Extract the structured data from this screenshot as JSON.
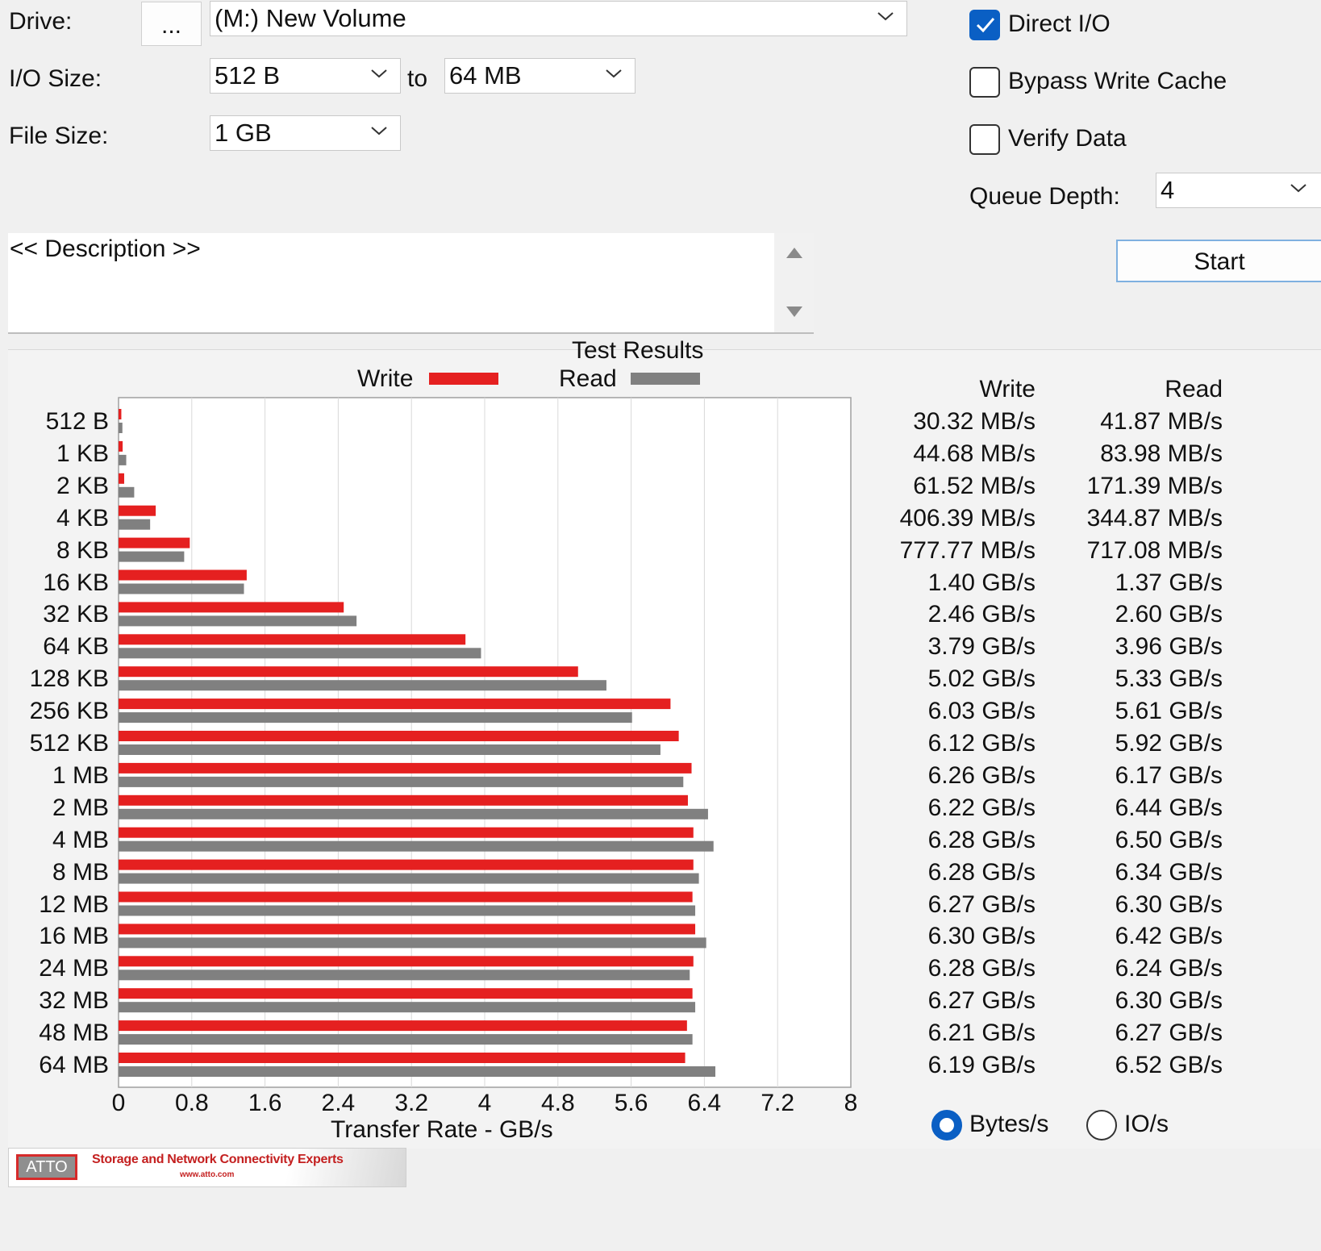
{
  "controls": {
    "drive_label": "Drive:",
    "browse_label": "...",
    "drive_value": "(M:) New Volume",
    "io_size_label": "I/O Size:",
    "io_from": "512 B",
    "io_to_word": "to",
    "io_to": "64 MB",
    "file_size_label": "File Size:",
    "file_size": "1 GB",
    "direct_io_label": "Direct I/O",
    "direct_io_checked": true,
    "bypass_label": "Bypass Write Cache",
    "bypass_checked": false,
    "verify_label": "Verify Data",
    "verify_checked": false,
    "queue_depth_label": "Queue Depth:",
    "queue_depth": "4",
    "start_label": "Start",
    "description": "<< Description >>"
  },
  "results": {
    "write_header": "Write",
    "read_header": "Read",
    "unit_bytes_label": "Bytes/s",
    "unit_io_label": "IO/s",
    "rows": [
      {
        "size": "512 B",
        "write": "30.32 MB/s",
        "read": "41.87 MB/s"
      },
      {
        "size": "1 KB",
        "write": "44.68 MB/s",
        "read": "83.98 MB/s"
      },
      {
        "size": "2 KB",
        "write": "61.52 MB/s",
        "read": "171.39 MB/s"
      },
      {
        "size": "4 KB",
        "write": "406.39 MB/s",
        "read": "344.87 MB/s"
      },
      {
        "size": "8 KB",
        "write": "777.77 MB/s",
        "read": "717.08 MB/s"
      },
      {
        "size": "16 KB",
        "write": "1.40 GB/s",
        "read": "1.37 GB/s"
      },
      {
        "size": "32 KB",
        "write": "2.46 GB/s",
        "read": "2.60 GB/s"
      },
      {
        "size": "64 KB",
        "write": "3.79 GB/s",
        "read": "3.96 GB/s"
      },
      {
        "size": "128 KB",
        "write": "5.02 GB/s",
        "read": "5.33 GB/s"
      },
      {
        "size": "256 KB",
        "write": "6.03 GB/s",
        "read": "5.61 GB/s"
      },
      {
        "size": "512 KB",
        "write": "6.12 GB/s",
        "read": "5.92 GB/s"
      },
      {
        "size": "1 MB",
        "write": "6.26 GB/s",
        "read": "6.17 GB/s"
      },
      {
        "size": "2 MB",
        "write": "6.22 GB/s",
        "read": "6.44 GB/s"
      },
      {
        "size": "4 MB",
        "write": "6.28 GB/s",
        "read": "6.50 GB/s"
      },
      {
        "size": "8 MB",
        "write": "6.28 GB/s",
        "read": "6.34 GB/s"
      },
      {
        "size": "12 MB",
        "write": "6.27 GB/s",
        "read": "6.30 GB/s"
      },
      {
        "size": "16 MB",
        "write": "6.30 GB/s",
        "read": "6.42 GB/s"
      },
      {
        "size": "24 MB",
        "write": "6.28 GB/s",
        "read": "6.24 GB/s"
      },
      {
        "size": "32 MB",
        "write": "6.27 GB/s",
        "read": "6.30 GB/s"
      },
      {
        "size": "48 MB",
        "write": "6.21 GB/s",
        "read": "6.27 GB/s"
      },
      {
        "size": "64 MB",
        "write": "6.19 GB/s",
        "read": "6.52 GB/s"
      }
    ]
  },
  "chart_data": {
    "type": "bar",
    "orientation": "horizontal",
    "title": "Test Results",
    "xlabel": "Transfer Rate - GB/s",
    "xlim": [
      0,
      8
    ],
    "xticks": [
      "0",
      "0.8",
      "1.6",
      "2.4",
      "3.2",
      "4",
      "4.8",
      "5.6",
      "6.4",
      "7.2",
      "8"
    ],
    "grid": true,
    "legend": "top",
    "categories": [
      "512 B",
      "1 KB",
      "2 KB",
      "4 KB",
      "8 KB",
      "16 KB",
      "32 KB",
      "64 KB",
      "128 KB",
      "256 KB",
      "512 KB",
      "1 MB",
      "2 MB",
      "4 MB",
      "8 MB",
      "12 MB",
      "16 MB",
      "24 MB",
      "32 MB",
      "48 MB",
      "64 MB"
    ],
    "series": [
      {
        "name": "Write",
        "color": "#e52020",
        "values": [
          0.0303,
          0.0447,
          0.0615,
          0.406,
          0.778,
          1.4,
          2.46,
          3.79,
          5.02,
          6.03,
          6.12,
          6.26,
          6.22,
          6.28,
          6.28,
          6.27,
          6.3,
          6.28,
          6.27,
          6.21,
          6.19
        ]
      },
      {
        "name": "Read",
        "color": "#808080",
        "values": [
          0.0419,
          0.084,
          0.171,
          0.345,
          0.717,
          1.37,
          2.6,
          3.96,
          5.33,
          5.61,
          5.92,
          6.17,
          6.44,
          6.5,
          6.34,
          6.3,
          6.42,
          6.24,
          6.3,
          6.27,
          6.52
        ]
      }
    ]
  },
  "footer": {
    "logo_text": "ATTO",
    "tagline": "Storage and Network Connectivity Experts",
    "url": "www.atto.com"
  }
}
